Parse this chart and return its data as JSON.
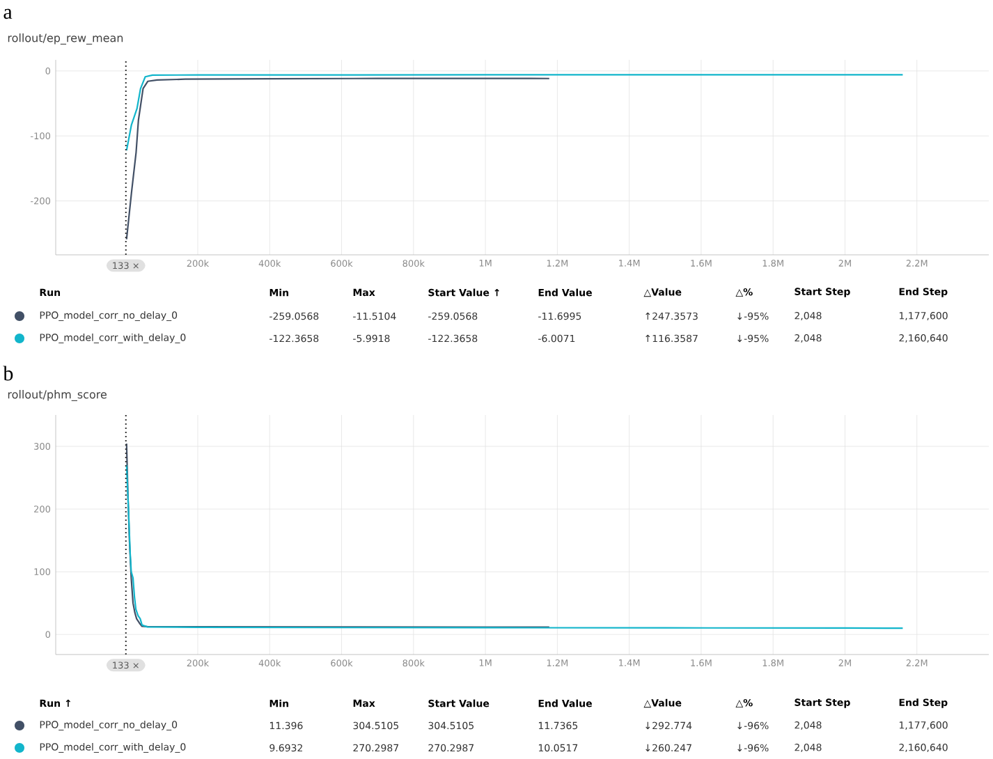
{
  "chart_data": [
    {
      "type": "line",
      "title": "rollout/ep_rew_mean",
      "grid": true,
      "legend": "bottom",
      "xlim": [
        -195000,
        2400000
      ],
      "ylim": [
        -283,
        17
      ],
      "xticks": [
        {
          "value": 200000,
          "label": "200k"
        },
        {
          "value": 400000,
          "label": "400k"
        },
        {
          "value": 600000,
          "label": "600k"
        },
        {
          "value": 800000,
          "label": "800k"
        },
        {
          "value": 1000000,
          "label": "1M"
        },
        {
          "value": 1200000,
          "label": "1.2M"
        },
        {
          "value": 1400000,
          "label": "1.4M"
        },
        {
          "value": 1600000,
          "label": "1.6M"
        },
        {
          "value": 1800000,
          "label": "1.8M"
        },
        {
          "value": 2000000,
          "label": "2M"
        },
        {
          "value": 2200000,
          "label": "2.2M"
        }
      ],
      "yticks": [
        -200,
        -100,
        0
      ],
      "ref_lines": [
        {
          "axis": "x",
          "value": 133,
          "label": "133 ×",
          "line_style": "dotted"
        }
      ],
      "annotations": [
        "a",
        "Run",
        "Min",
        "Max",
        "Start Value ↑",
        "End Value",
        "△Value",
        "△%",
        "Start Step",
        "End Step",
        "-259.0568",
        "-11.5104",
        "-259.0568",
        "-11.6995",
        "↑247.3573",
        "↓-95%",
        "2,048",
        "1,177,600",
        "-122.3658",
        "-5.9918",
        "-122.3658",
        "-6.0071",
        "↑116.3587",
        "↓-95%",
        "2,048",
        "2,160,640"
      ],
      "series": [
        {
          "name": "PPO_model_corr_no_delay_0",
          "color": "#425066",
          "x": [
            2048,
            15600,
            28600,
            35000,
            48000,
            61000,
            87000,
            165000,
            400000,
            700000,
            1000000,
            1177600
          ],
          "values": [
            -259.0568,
            -188,
            -125,
            -76,
            -27,
            -16,
            -14,
            -12.7,
            -12,
            -11.6,
            -11.5,
            -11.6995
          ]
        },
        {
          "name": "PPO_model_corr_with_delay_0",
          "color": "#12b5cb",
          "x": [
            2048,
            15600,
            31000,
            41000,
            54000,
            74000,
            200000,
            600000,
            1000000,
            1500000,
            2000000,
            2160640
          ],
          "values": [
            -122.3658,
            -83,
            -58,
            -27,
            -9,
            -6.5,
            -6.2,
            -6.1,
            -6,
            -6,
            -6,
            -6.0071
          ]
        }
      ]
    },
    {
      "type": "line",
      "title": "rollout/phm_score",
      "grid": true,
      "legend": "bottom",
      "xlim": [
        -195000,
        2400000
      ],
      "ylim": [
        -32,
        350
      ],
      "xticks": [
        {
          "value": 200000,
          "label": "200k"
        },
        {
          "value": 400000,
          "label": "400k"
        },
        {
          "value": 600000,
          "label": "600k"
        },
        {
          "value": 800000,
          "label": "800k"
        },
        {
          "value": 1000000,
          "label": "1M"
        },
        {
          "value": 1200000,
          "label": "1.2M"
        },
        {
          "value": 1400000,
          "label": "1.4M"
        },
        {
          "value": 1600000,
          "label": "1.6M"
        },
        {
          "value": 1800000,
          "label": "1.8M"
        },
        {
          "value": 2000000,
          "label": "2M"
        },
        {
          "value": 2200000,
          "label": "2.2M"
        }
      ],
      "yticks": [
        0,
        100,
        200,
        300
      ],
      "ref_lines": [
        {
          "axis": "x",
          "value": 133,
          "label": "133 ×",
          "line_style": "dotted"
        }
      ],
      "annotations": [
        "b",
        "Run ↑",
        "Min",
        "Max",
        "Start Value",
        "End Value",
        "△Value",
        "△%",
        "Start Step",
        "End Step",
        "11.396",
        "304.5105",
        "304.5105",
        "11.7365",
        "↓292.774",
        "↓-96%",
        "2,048",
        "1,177,600",
        "9.6932",
        "270.2987",
        "270.2987",
        "10.0517",
        "↓260.247",
        "↓-96%",
        "2,048",
        "2,160,640"
      ],
      "series": [
        {
          "name": "PPO_model_corr_no_delay_0",
          "color": "#425066",
          "x": [
            2048,
            6000,
            10000,
            15000,
            20000,
            25000,
            30000,
            38000,
            45000,
            60000,
            200000,
            600000,
            1000000,
            1177600
          ],
          "values": [
            304.5105,
            220,
            150,
            90,
            50,
            35,
            25,
            18,
            13,
            12.5,
            12.3,
            12,
            11.8,
            11.7365
          ]
        },
        {
          "name": "PPO_model_corr_with_delay_0",
          "color": "#12b5cb",
          "x": [
            2048,
            5000,
            8000,
            12000,
            15000,
            20000,
            24000,
            28000,
            34000,
            40000,
            45000,
            60000,
            200000,
            600000,
            1000000,
            1500000,
            2000000,
            2160640
          ],
          "values": [
            270.2987,
            230,
            190,
            130,
            100,
            90,
            60,
            40,
            30,
            25,
            15,
            12,
            11.5,
            11,
            10.8,
            10.5,
            10.2,
            10.0517
          ]
        }
      ]
    }
  ]
}
